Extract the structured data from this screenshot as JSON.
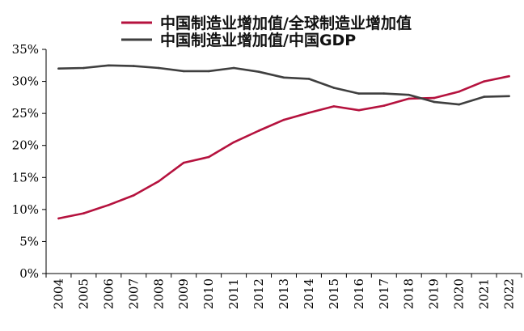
{
  "chart_data": {
    "type": "line",
    "title": "",
    "xlabel": "",
    "ylabel": "",
    "categories": [
      "2004",
      "2005",
      "2006",
      "2007",
      "2008",
      "2009",
      "2010",
      "2011",
      "2012",
      "2013",
      "2014",
      "2015",
      "2016",
      "2017",
      "2018",
      "2019",
      "2020",
      "2021",
      "2022"
    ],
    "ylim": [
      0,
      35
    ],
    "yticks": [
      "0%",
      "5%",
      "10%",
      "15%",
      "20%",
      "25%",
      "30%",
      "35%"
    ],
    "legend_position": "top",
    "series": [
      {
        "name": "中国制造业增加值/全球制造业增加值",
        "color": "#b5123e",
        "values": [
          8.6,
          9.4,
          10.7,
          12.2,
          14.4,
          17.3,
          18.2,
          20.5,
          22.3,
          24.0,
          25.1,
          26.1,
          25.5,
          26.2,
          27.3,
          27.4,
          28.4,
          30.0,
          30.8
        ]
      },
      {
        "name": "中国制造业增加值/中国GDP",
        "color": "#3f3f3f",
        "values": [
          32.0,
          32.1,
          32.5,
          32.4,
          32.1,
          31.6,
          31.6,
          32.1,
          31.5,
          30.6,
          30.4,
          29.0,
          28.1,
          28.1,
          27.9,
          26.8,
          26.4,
          27.6,
          27.7
        ]
      }
    ]
  }
}
